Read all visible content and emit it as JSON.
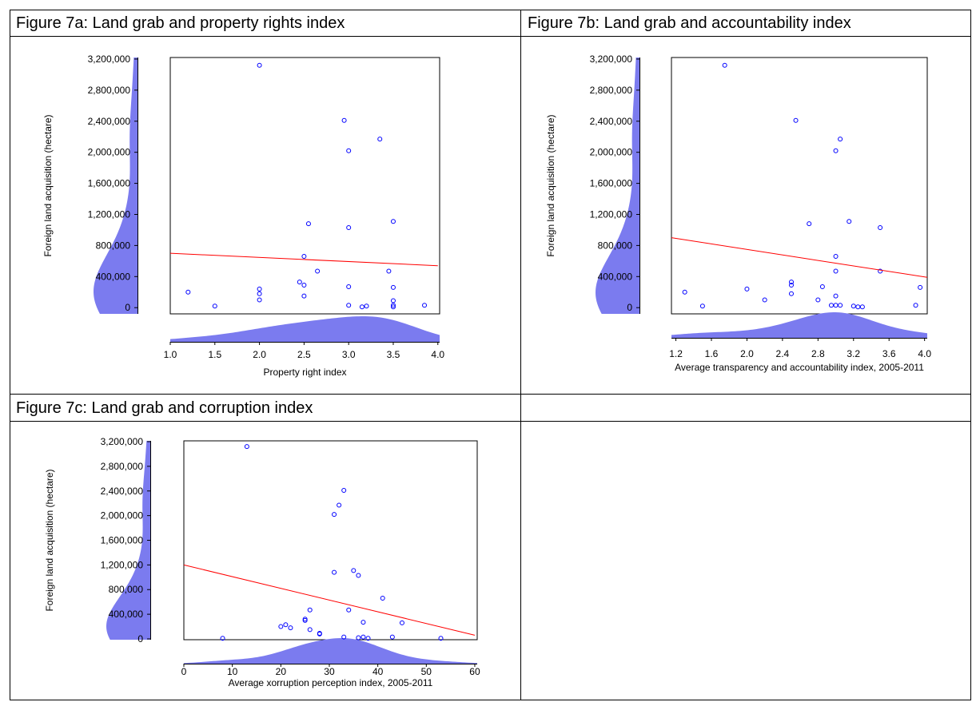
{
  "chart_data": [
    {
      "type": "scatter",
      "title": "Figure  7a: Land grab and property rights index",
      "x_label": "Property right index",
      "y_label": "Foreign land acquisition (hectare)",
      "point_color": "#0000ff",
      "density_color": "#7b7bef",
      "x": [
        1.2,
        1.5,
        2,
        2,
        2,
        2,
        2.45,
        2.5,
        2.5,
        2.5,
        2.55,
        2.65,
        2.95,
        3,
        3,
        3,
        3,
        3.15,
        3.2,
        3.35,
        3.45,
        3.5,
        3.5,
        3.5,
        3.5,
        3.5,
        3.85
      ],
      "y": [
        200000,
        20000,
        3120000,
        240000,
        180000,
        100000,
        330000,
        290000,
        150000,
        660000,
        1080000,
        470000,
        2410000,
        2020000,
        1030000,
        270000,
        30000,
        10000,
        20000,
        2170000,
        470000,
        1110000,
        260000,
        90000,
        30000,
        10000,
        30000
      ],
      "trend_line": {
        "x": [
          1,
          4
        ],
        "y": [
          700000,
          540000
        ],
        "color": "#ff0000"
      },
      "xlim": [
        1,
        4.02
      ],
      "ylim": [
        -80000,
        3220000
      ],
      "xticks": [
        {
          "value": 1,
          "label": "1.0"
        },
        1.5,
        {
          "value": 2,
          "label": "2.0"
        },
        2.5,
        {
          "value": 3,
          "label": "3.0"
        },
        3.5,
        {
          "value": 4,
          "label": "4.0"
        }
      ],
      "yticks": [
        0,
        {
          "value": 400000,
          "label": "400,000"
        },
        {
          "value": 800000,
          "label": "800,000"
        },
        {
          "value": 1200000,
          "label": "1,200,000"
        },
        {
          "value": 1600000,
          "label": "1,600,000"
        },
        {
          "value": 2000000,
          "label": "2,000,000"
        },
        {
          "value": 2400000,
          "label": "2,400,000"
        },
        {
          "value": 2800000,
          "label": "2,800,000"
        },
        {
          "value": 3200000,
          "label": "3,200,000"
        }
      ]
    },
    {
      "type": "scatter",
      "title": "Figure 7b: Land grab and accountability index",
      "x_label": "Average transparency and accountability index, 2005-2011",
      "y_label": "Foreign land acquisition (hectare)",
      "point_color": "#0000ff",
      "density_color": "#7b7bef",
      "x": [
        1.3,
        1.5,
        1.75,
        2,
        2.2,
        2.5,
        2.5,
        2.5,
        2.55,
        2.7,
        2.8,
        2.85,
        2.95,
        3,
        3,
        3,
        3,
        3,
        3.05,
        3.05,
        3.15,
        3.2,
        3.25,
        3.3,
        3.5,
        3.5,
        3.9,
        3.95
      ],
      "y": [
        200000,
        20000,
        3120000,
        240000,
        100000,
        330000,
        290000,
        180000,
        2410000,
        1080000,
        100000,
        270000,
        30000,
        2020000,
        660000,
        470000,
        150000,
        30000,
        2170000,
        30000,
        1110000,
        20000,
        10000,
        10000,
        1030000,
        470000,
        30000,
        260000
      ],
      "trend_line": {
        "x": [
          1.15,
          4.03
        ],
        "y": [
          900000,
          390000
        ],
        "color": "#ff0000"
      },
      "xlim": [
        1.15,
        4.03
      ],
      "ylim": [
        -80000,
        3220000
      ],
      "xticks": [
        1.2,
        1.6,
        {
          "value": 2,
          "label": "2.0"
        },
        2.4,
        2.8,
        3.2,
        3.6,
        {
          "value": 4,
          "label": "4.0"
        }
      ],
      "yticks": [
        0,
        {
          "value": 400000,
          "label": "400,000"
        },
        {
          "value": 800000,
          "label": "800,000"
        },
        {
          "value": 1200000,
          "label": "1,200,000"
        },
        {
          "value": 1600000,
          "label": "1,600,000"
        },
        {
          "value": 2000000,
          "label": "2,000,000"
        },
        {
          "value": 2400000,
          "label": "2,400,000"
        },
        {
          "value": 2800000,
          "label": "2,800,000"
        },
        {
          "value": 3200000,
          "label": "3,200,000"
        }
      ]
    },
    {
      "type": "scatter",
      "title": "Figure 7c: Land grab and corruption index",
      "x_label": "Average xorruption perception index, 2005-2011",
      "y_label": "Foreign land acquisition (hectare)",
      "point_color": "#0000ff",
      "density_color": "#7b7bef",
      "x": [
        8,
        13,
        20,
        21,
        22,
        25,
        25,
        26,
        26,
        28,
        28,
        31,
        31,
        32,
        33,
        33,
        34,
        35,
        36,
        36,
        37,
        37,
        38,
        41,
        43,
        45,
        53
      ],
      "y": [
        10000,
        3120000,
        200000,
        230000,
        180000,
        320000,
        300000,
        470000,
        150000,
        80000,
        90000,
        1080000,
        2020000,
        2170000,
        2410000,
        30000,
        470000,
        1110000,
        1030000,
        20000,
        270000,
        30000,
        10000,
        660000,
        30000,
        260000,
        10000
      ],
      "trend_line": {
        "x": [
          0,
          60
        ],
        "y": [
          1200000,
          60000
        ],
        "color": "#ff0000"
      },
      "xlim": [
        0,
        60.5
      ],
      "ylim": [
        -13000,
        3213000
      ],
      "xticks": [
        0,
        10,
        20,
        30,
        40,
        50,
        60
      ],
      "yticks": [
        0,
        {
          "value": 400000,
          "label": "400,000"
        },
        {
          "value": 800000,
          "label": "800,000"
        },
        {
          "value": 1200000,
          "label": "1,200,000"
        },
        {
          "value": 1600000,
          "label": "1,600,000"
        },
        {
          "value": 2000000,
          "label": "2,000,000"
        },
        {
          "value": 2400000,
          "label": "2,400,000"
        },
        {
          "value": 2800000,
          "label": "2,800,000"
        },
        {
          "value": 3200000,
          "label": "3,200,000"
        }
      ]
    }
  ]
}
